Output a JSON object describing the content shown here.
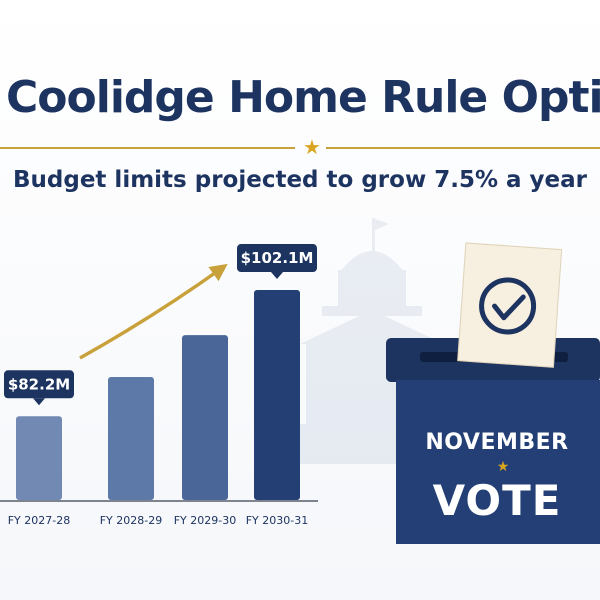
{
  "header": {
    "title": "Coolidge Home Rule Option",
    "subtitle": "Budget limits projected to grow 7.5% a year"
  },
  "ballot_box": {
    "line1": "NOVEMBER",
    "line2": "VOTE",
    "icon": "checkmark-icon",
    "color": "#1d3461"
  },
  "colors": {
    "navy": "#1d3461",
    "gold": "#c9a13b",
    "bar_light": "#7189b3",
    "bar_mid": "#5d79a8",
    "bar_dark": "#4a6699",
    "bar_darkest": "#243f73"
  },
  "chart_data": {
    "type": "bar",
    "title": "",
    "xlabel": "",
    "ylabel": "",
    "categories": [
      "FY 2027-28",
      "FY 2028-29",
      "FY 2029-30",
      "FY 2030-31"
    ],
    "values": [
      82.2,
      88.4,
      95.0,
      102.1
    ],
    "data_labels": [
      "$82.2M",
      "",
      "",
      "$102.1M"
    ],
    "ylim": [
      69,
      104
    ],
    "grid": false,
    "legend": "none"
  }
}
